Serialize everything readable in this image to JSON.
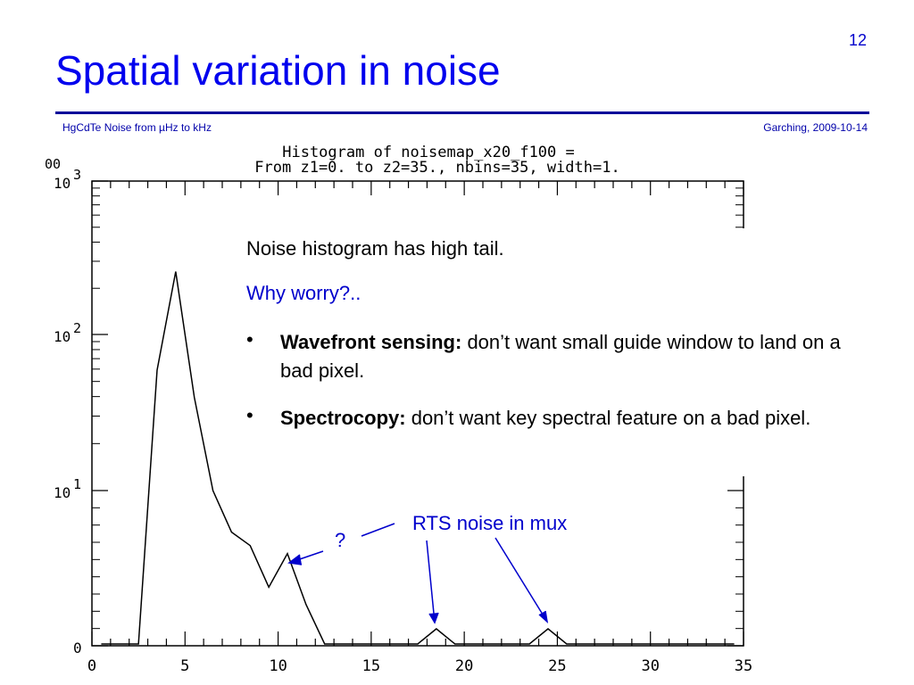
{
  "slide": {
    "number": "12",
    "title": "Spatial variation in noise",
    "footer_left": "HgCdTe Noise from µHz to kHz",
    "footer_right": "Garching, 2009-10-14"
  },
  "chart_data": {
    "type": "line",
    "title_line1": "Histogram of noisemap_x20_f100 =",
    "title_line2": "From z1=0. to z2=35., nbins=35, width=1.",
    "x_tick_labels": [
      "0",
      "5",
      "10",
      "15",
      "20",
      "25",
      "30",
      "35"
    ],
    "y_tick_labels": [
      {
        "base": "10",
        "exp": "3"
      },
      {
        "base": "10",
        "exp": "2"
      },
      {
        "base": "10",
        "exp": "1"
      },
      {
        "base": "0",
        "exp": ""
      }
    ],
    "y_top_label_fragment": "00",
    "xlim": [
      0,
      35
    ],
    "ylim_log10": [
      0,
      3
    ],
    "y_scale": "log",
    "series": [
      {
        "x": [
          0.5,
          1.5,
          2.5,
          3.5,
          4.5,
          5.5,
          6.5,
          7.5,
          8.5,
          9.5,
          10.5,
          11.5,
          12.5,
          13.5,
          14.5,
          15.5,
          16.5,
          17.5,
          18.5,
          19.5,
          20.5,
          21.5,
          22.5,
          23.5,
          24.5,
          25.5,
          26.5,
          27.5,
          28.5,
          29.5,
          30.5,
          31.5,
          32.5,
          33.5,
          34.5
        ],
        "y": [
          0,
          0,
          0,
          60,
          260,
          40,
          10,
          5,
          4,
          2,
          3.5,
          1.5,
          0,
          0,
          0,
          0,
          0,
          0,
          1,
          0,
          0,
          0,
          0,
          0,
          1,
          0,
          0,
          0,
          0,
          0,
          0,
          0,
          0,
          0,
          0
        ]
      }
    ]
  },
  "text": {
    "line1": "Noise histogram has high tail.",
    "line2": "Why worry?..",
    "bullet_symbol": "•",
    "bullet1_bold": "Wavefront sensing:",
    "bullet1_rest": " don’t want small guide window to land on a bad pixel.",
    "bullet2_bold": "Spectrocopy:",
    "bullet2_rest": "  don’t want key spectral feature on a bad pixel."
  },
  "annotations": {
    "question": "?",
    "rts": "RTS noise in mux"
  },
  "colors": {
    "title": "#0000ee",
    "accent": "#0000cc",
    "rule": "#000099",
    "plot": "#000000"
  }
}
